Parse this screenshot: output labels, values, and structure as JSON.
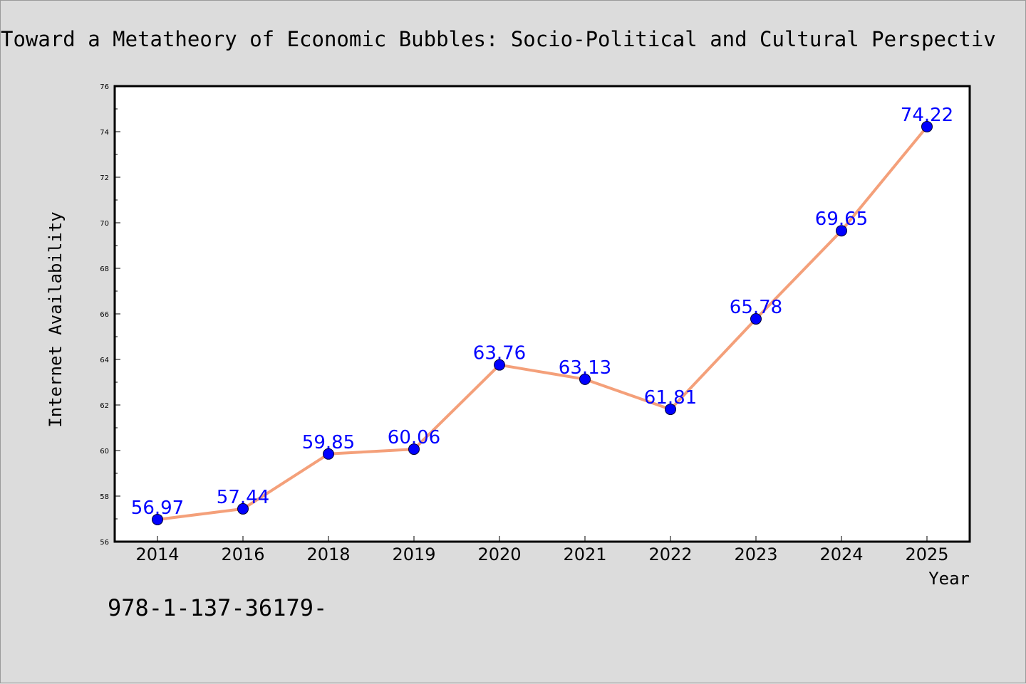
{
  "chart_data": {
    "type": "line",
    "title": "Toward a Metatheory of Economic Bubbles: Socio-Political and Cultural Perspectiv",
    "xlabel": "Year",
    "ylabel": "Internet Availability",
    "categories": [
      "2014",
      "2016",
      "2018",
      "2019",
      "2020",
      "2021",
      "2022",
      "2023",
      "2024",
      "2025"
    ],
    "series": [
      {
        "values": [
          56.97,
          57.44,
          59.85,
          60.06,
          63.76,
          63.13,
          61.81,
          65.78,
          69.65,
          74.22
        ],
        "labels": [
          "56.97",
          "57.44",
          "59.85",
          "60.06",
          "63.76",
          "63.13",
          "61.81",
          "65.78",
          "69.65",
          "74.22"
        ]
      }
    ],
    "ylim": [
      56,
      76
    ],
    "yticks": [
      "56",
      "58",
      "60",
      "62",
      "64",
      "66",
      "68",
      "70",
      "72",
      "74",
      "76"
    ],
    "grid": false,
    "line_color": "#f4a07a",
    "marker_color": "#0000ff",
    "label_color": "#0000ff"
  },
  "footer": {
    "isbn_text": "978-1-137-36179-"
  }
}
